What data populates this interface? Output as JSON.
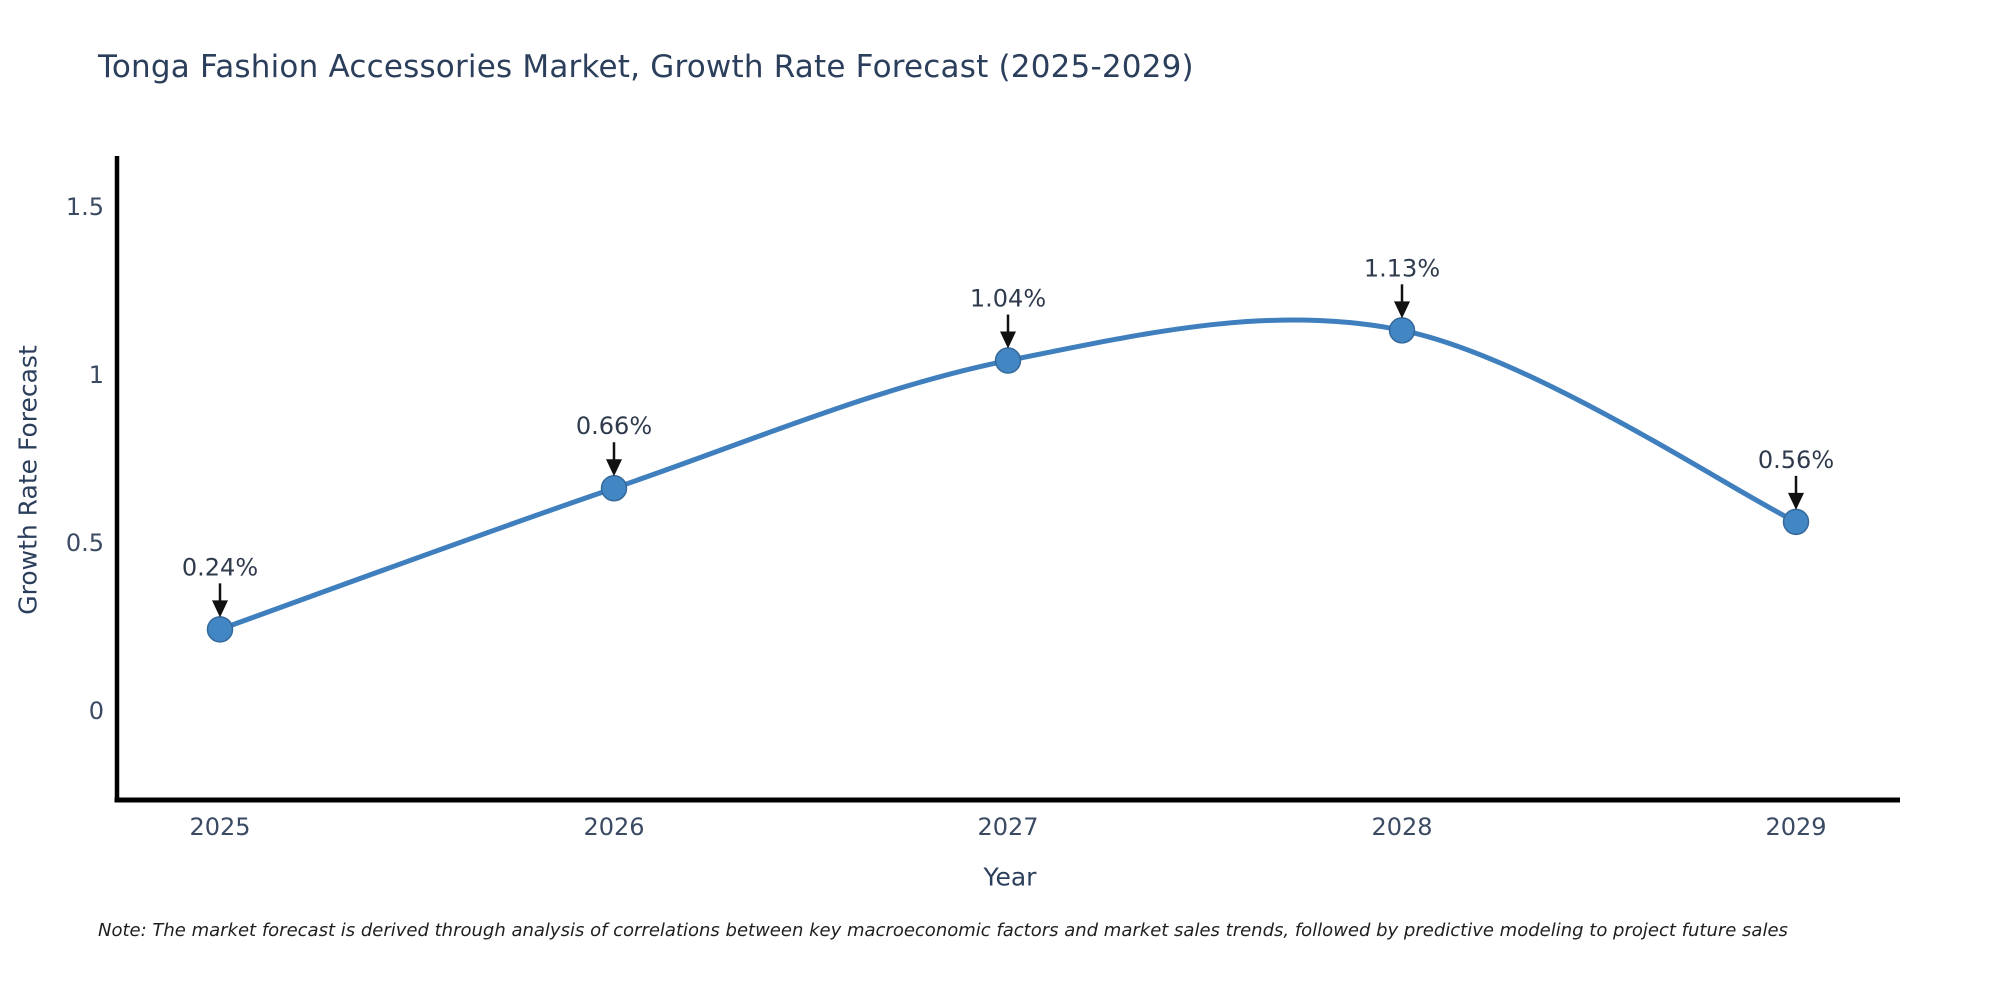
{
  "note": "Note: The market forecast is derived through analysis of correlations between key macroeconomic factors and market sales trends, followed by predictive modeling to project future sales",
  "chart_data": {
    "type": "line",
    "title": "Tonga Fashion Accessories Market, Growth Rate Forecast (2025-2029)",
    "xlabel": "Year",
    "ylabel": "Growth Rate Forecast",
    "x": [
      2025,
      2026,
      2027,
      2028,
      2029
    ],
    "values": [
      0.24,
      0.66,
      1.04,
      1.13,
      0.56
    ],
    "point_labels": [
      "0.24%",
      "0.66%",
      "1.04%",
      "1.13%",
      "0.56%"
    ],
    "x_tick_labels": [
      "2025",
      "2026",
      "2027",
      "2028",
      "2029"
    ],
    "y_ticks": [
      0,
      0.5,
      1,
      1.5
    ],
    "y_tick_labels": [
      "0",
      "0.5",
      "1",
      "1.5"
    ],
    "xlim": [
      2024.74,
      2029.27
    ],
    "ylim": [
      -0.27,
      1.64
    ],
    "line_shape": "spline",
    "grid": false,
    "legend": "none",
    "colors": {
      "line": "#3f7fbd",
      "marker": "#4286c4",
      "marker_edge": "#35699c",
      "axis": "#000000",
      "title_text": "#2b3f5c",
      "tick_text": "#3b4a63",
      "annotation_text": "#2f3b4d",
      "arrow": "#111111",
      "note_text": "#1f1f1f"
    }
  }
}
